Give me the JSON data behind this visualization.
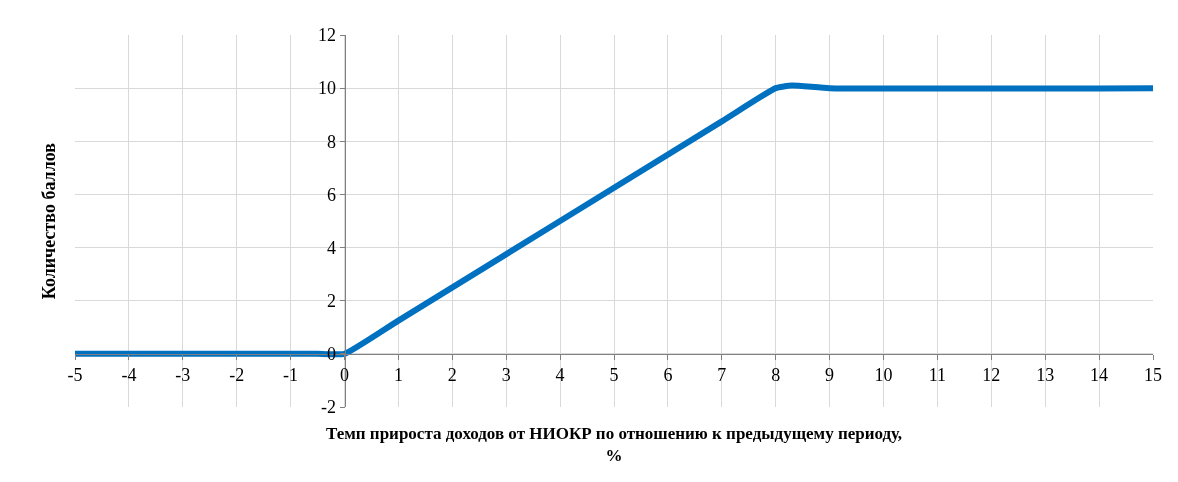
{
  "chart_data": {
    "type": "line",
    "xlabel": "Темп прироста доходов от НИОКР по отношению к предыдущему периоду, %",
    "ylabel": "Количество баллов",
    "x": [
      -5,
      -1,
      -0.5,
      0,
      1,
      7,
      8,
      8.3,
      9,
      15
    ],
    "series": [
      {
        "color": "#0070c0",
        "values": [
          0,
          0,
          0,
          0,
          1.25,
          8.75,
          10,
          10.1,
          10,
          10
        ]
      }
    ],
    "xlim": [
      -5,
      15
    ],
    "xticks": [
      -5,
      -4,
      -3,
      -2,
      -1,
      0,
      1,
      2,
      3,
      4,
      5,
      6,
      7,
      8,
      9,
      10,
      11,
      12,
      13,
      14,
      15
    ],
    "ylim": [
      -2,
      12
    ],
    "yticks": [
      -2,
      0,
      2,
      4,
      6,
      8,
      10,
      12
    ],
    "grid": true,
    "marker": "none",
    "line_style": "solid"
  }
}
